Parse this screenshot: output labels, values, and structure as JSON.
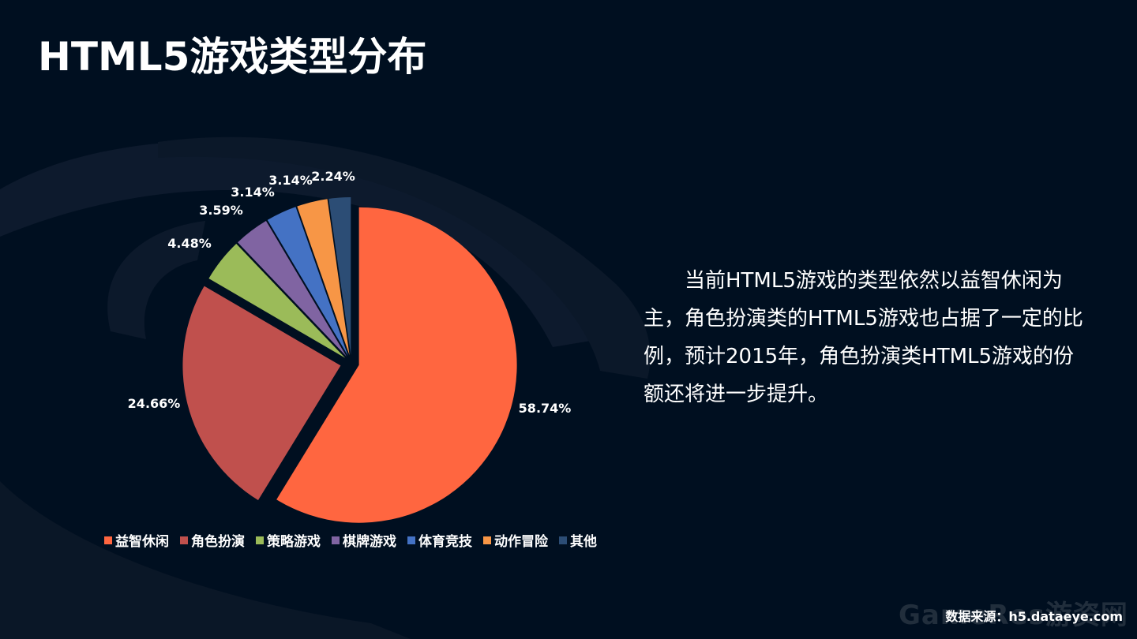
{
  "page": {
    "title": "HTML5游戏类型分布",
    "description": "当前HTML5游戏的类型依然以益智休闲为主，角色扮演类的HTML5游戏也占据了一定的比例，预计2015年，角色扮演类HTML5游戏的份额还将进一步提升。",
    "source": "数据来源：h5.dataeye.com",
    "watermark": "GameRes游资网"
  },
  "chart_data": {
    "type": "pie",
    "categories": [
      "益智休闲",
      "角色扮演",
      "策略游戏",
      "棋牌游戏",
      "体育竞技",
      "动作冒险",
      "其他"
    ],
    "values": [
      58.74,
      24.66,
      4.48,
      3.59,
      3.14,
      3.14,
      2.24
    ],
    "labels": [
      "58.74%",
      "24.66%",
      "4.48%",
      "3.59%",
      "3.14%",
      "3.14%",
      "2.24%"
    ],
    "colors": [
      "#ff6640",
      "#c0504d",
      "#9bbb59",
      "#8064a2",
      "#4472c4",
      "#f79646",
      "#2c4d75"
    ],
    "legend_position": "bottom",
    "exploded": true
  }
}
